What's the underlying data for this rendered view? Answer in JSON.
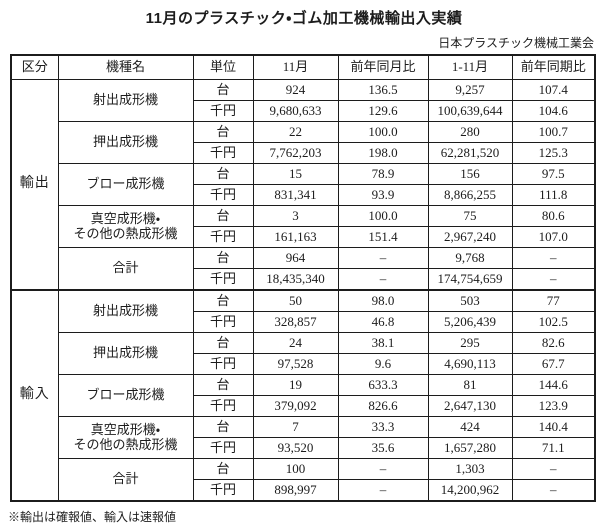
{
  "title": "11月のプラスチック・ゴム加工機械輸出入実績",
  "organization": "日本プラスチック機械工業会",
  "footnote": "※輸出は確報値、輸入は速報値",
  "table": {
    "headers": [
      "区分",
      "機種名",
      "単位",
      "11月",
      "前年同月比",
      "1-11月",
      "前年同期比"
    ],
    "sections": [
      {
        "category": "輸出",
        "machines": [
          {
            "name": "射出成形機",
            "rows": [
              {
                "unit": "台",
                "values": [
                  "924",
                  "136.5",
                  "9,257",
                  "107.4"
                ]
              },
              {
                "unit": "千円",
                "values": [
                  "9,680,633",
                  "129.6",
                  "100,639,644",
                  "104.6"
                ]
              }
            ]
          },
          {
            "name": "押出成形機",
            "rows": [
              {
                "unit": "台",
                "values": [
                  "22",
                  "100.0",
                  "280",
                  "100.7"
                ]
              },
              {
                "unit": "千円",
                "values": [
                  "7,762,203",
                  "198.0",
                  "62,281,520",
                  "125.3"
                ]
              }
            ]
          },
          {
            "name": "ブロー成形機",
            "rows": [
              {
                "unit": "台",
                "values": [
                  "15",
                  "78.9",
                  "156",
                  "97.5"
                ]
              },
              {
                "unit": "千円",
                "values": [
                  "831,341",
                  "93.9",
                  "8,866,255",
                  "111.8"
                ]
              }
            ]
          },
          {
            "name": "真空成形機・\nその他の熱成形機",
            "rows": [
              {
                "unit": "台",
                "values": [
                  "3",
                  "100.0",
                  "75",
                  "80.6"
                ]
              },
              {
                "unit": "千円",
                "values": [
                  "161,163",
                  "151.4",
                  "2,967,240",
                  "107.0"
                ]
              }
            ]
          },
          {
            "name": "合計",
            "rows": [
              {
                "unit": "台",
                "values": [
                  "964",
                  "–",
                  "9,768",
                  "–"
                ]
              },
              {
                "unit": "千円",
                "values": [
                  "18,435,340",
                  "–",
                  "174,754,659",
                  "–"
                ]
              }
            ]
          }
        ]
      },
      {
        "category": "輸入",
        "machines": [
          {
            "name": "射出成形機",
            "rows": [
              {
                "unit": "台",
                "values": [
                  "50",
                  "98.0",
                  "503",
                  "77"
                ]
              },
              {
                "unit": "千円",
                "values": [
                  "328,857",
                  "46.8",
                  "5,206,439",
                  "102.5"
                ]
              }
            ]
          },
          {
            "name": "押出成形機",
            "rows": [
              {
                "unit": "台",
                "values": [
                  "24",
                  "38.1",
                  "295",
                  "82.6"
                ]
              },
              {
                "unit": "千円",
                "values": [
                  "97,528",
                  "9.6",
                  "4,690,113",
                  "67.7"
                ]
              }
            ]
          },
          {
            "name": "ブロー成形機",
            "rows": [
              {
                "unit": "台",
                "values": [
                  "19",
                  "633.3",
                  "81",
                  "144.6"
                ]
              },
              {
                "unit": "千円",
                "values": [
                  "379,092",
                  "826.6",
                  "2,647,130",
                  "123.9"
                ]
              }
            ]
          },
          {
            "name": "真空成形機・\nその他の熱成形機",
            "rows": [
              {
                "unit": "台",
                "values": [
                  "7",
                  "33.3",
                  "424",
                  "140.4"
                ]
              },
              {
                "unit": "千円",
                "values": [
                  "93,520",
                  "35.6",
                  "1,657,280",
                  "71.1"
                ]
              }
            ]
          },
          {
            "name": "合計",
            "rows": [
              {
                "unit": "台",
                "values": [
                  "100",
                  "–",
                  "1,303",
                  "–"
                ]
              },
              {
                "unit": "千円",
                "values": [
                  "898,997",
                  "–",
                  "14,200,962",
                  "–"
                ]
              }
            ]
          }
        ]
      }
    ]
  }
}
